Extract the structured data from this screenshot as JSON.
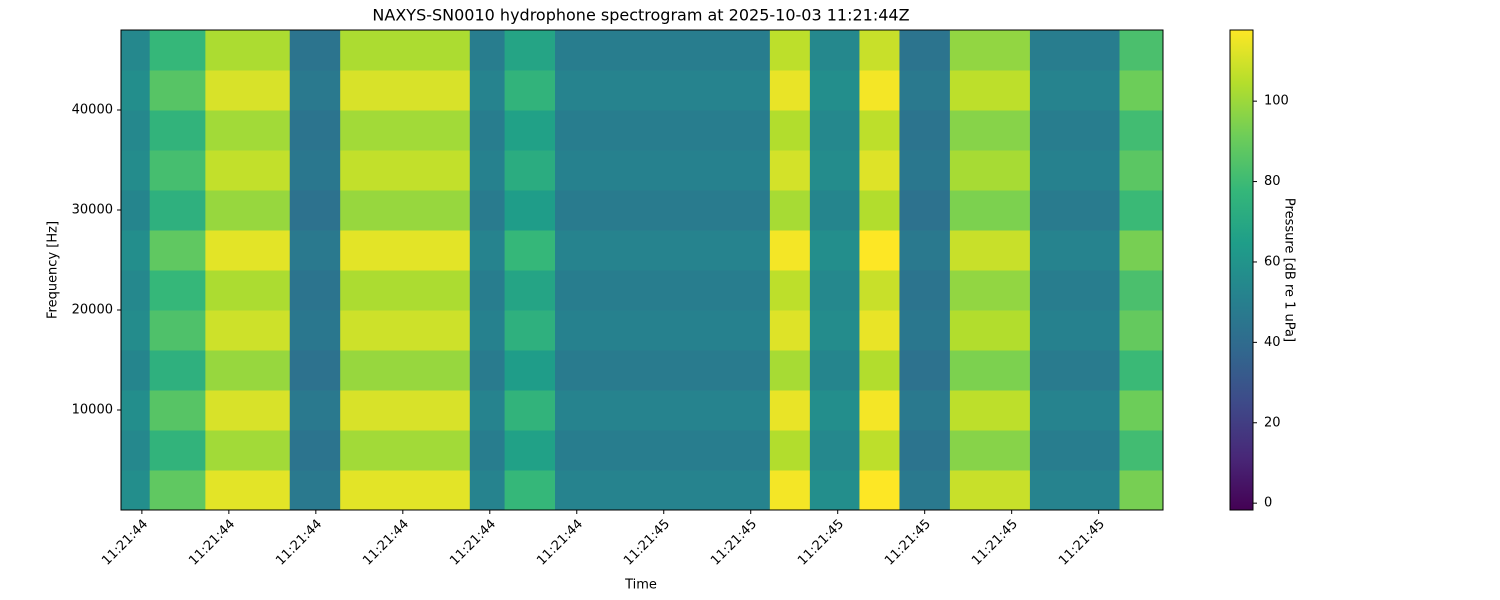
{
  "chart_data": {
    "type": "heatmap",
    "title": "NAXYS-SN0010 hydrophone spectrogram at 2025-10-03 11:21:44Z",
    "x_label": "Time",
    "y_label": "Frequency [Hz]",
    "colorbar_label": "Pressure [dB re 1 uPa]",
    "colormap": "viridis",
    "xlim": [
      44.376,
      45.574
    ],
    "ylim": [
      0,
      48000
    ],
    "clim": [
      -1.7,
      117.7
    ],
    "xticks": [
      {
        "value": 44.4,
        "label": "11:21:44"
      },
      {
        "value": 44.5,
        "label": "11:21:44"
      },
      {
        "value": 44.6,
        "label": "11:21:44"
      },
      {
        "value": 44.7,
        "label": "11:21:44"
      },
      {
        "value": 44.8,
        "label": "11:21:44"
      },
      {
        "value": 44.9,
        "label": "11:21:44"
      },
      {
        "value": 45.0,
        "label": "11:21:45"
      },
      {
        "value": 45.1,
        "label": "11:21:45"
      },
      {
        "value": 45.2,
        "label": "11:21:45"
      },
      {
        "value": 45.3,
        "label": "11:21:45"
      },
      {
        "value": 45.4,
        "label": "11:21:45"
      },
      {
        "value": 45.5,
        "label": "11:21:45"
      }
    ],
    "yticks": [
      10000,
      20000,
      30000,
      40000
    ],
    "cticks": [
      0,
      20,
      40,
      60,
      80,
      100
    ],
    "x_edges": [
      44.376,
      44.409,
      44.473,
      44.57,
      44.628,
      44.777,
      44.817,
      44.875,
      45.122,
      45.168,
      45.225,
      45.271,
      45.329,
      45.421,
      45.524,
      45.574
    ],
    "y_edges": [
      0,
      4000,
      8000,
      12000,
      16000,
      20000,
      24000,
      28000,
      32000,
      36000,
      40000,
      44000,
      48000
    ],
    "values": [
      [
        57,
        88,
        113,
        47,
        113,
        52,
        78,
        52,
        116,
        57,
        118,
        47,
        108,
        52,
        93
      ],
      [
        54,
        76,
        101,
        44,
        101,
        49,
        66,
        49,
        104,
        54,
        106,
        44,
        96,
        49,
        81
      ],
      [
        57,
        86,
        111,
        47,
        111,
        52,
        76,
        52,
        114,
        57,
        116,
        47,
        106,
        52,
        91
      ],
      [
        53,
        74,
        99,
        43,
        99,
        48,
        64,
        48,
        102,
        53,
        104,
        43,
        94,
        48,
        79
      ],
      [
        56,
        84,
        109,
        46,
        109,
        51,
        74,
        51,
        112,
        56,
        114,
        46,
        104,
        51,
        89
      ],
      [
        54,
        78,
        103,
        44,
        103,
        49,
        68,
        49,
        106,
        54,
        108,
        44,
        98,
        49,
        83
      ],
      [
        57,
        88,
        113,
        47,
        113,
        52,
        78,
        52,
        116,
        57,
        118,
        47,
        108,
        52,
        93
      ],
      [
        53,
        74,
        99,
        43,
        99,
        48,
        64,
        48,
        102,
        53,
        104,
        43,
        94,
        48,
        79
      ],
      [
        56,
        82,
        107,
        46,
        107,
        51,
        72,
        51,
        110,
        56,
        112,
        46,
        102,
        51,
        87
      ],
      [
        54,
        76,
        101,
        44,
        101,
        49,
        66,
        49,
        104,
        54,
        106,
        44,
        96,
        49,
        81
      ],
      [
        57,
        86,
        111,
        47,
        111,
        52,
        76,
        52,
        114,
        57,
        116,
        47,
        106,
        52,
        91
      ],
      [
        54,
        78,
        103,
        44,
        103,
        49,
        68,
        49,
        106,
        54,
        108,
        44,
        98,
        49,
        83
      ]
    ]
  }
}
